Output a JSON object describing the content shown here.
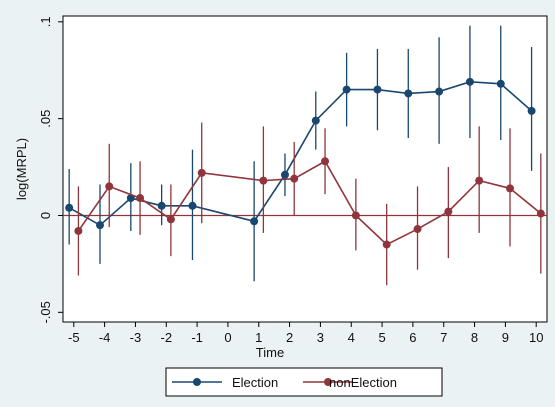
{
  "chart_data": {
    "type": "line",
    "title": "",
    "xlabel": "Time",
    "ylabel": "log(MRPL)",
    "x": [
      -5,
      -4,
      -3,
      -2,
      -1,
      1,
      2,
      3,
      4,
      5,
      6,
      7,
      8,
      9,
      10
    ],
    "x_ticks": [
      "-5",
      "-4",
      "-3",
      "-2",
      "-1",
      "0",
      "1",
      "2",
      "3",
      "4",
      "5",
      "6",
      "7",
      "8",
      "9",
      "10"
    ],
    "y_ticks": [
      {
        "value": 0.1,
        "label": ".1"
      },
      {
        "value": 0.05,
        "label": ".05"
      },
      {
        "value": 0,
        "label": "0"
      },
      {
        "value": -0.05,
        "label": "-.05"
      }
    ],
    "xlim": [
      -5.35,
      10.35
    ],
    "ylim": [
      -0.055,
      0.103
    ],
    "reference_line_y": 0,
    "legend_position": "bottom",
    "series": [
      {
        "name": "Election",
        "color": "#1a476f",
        "y": [
          0.004,
          -0.005,
          0.009,
          0.005,
          0.005,
          -0.003,
          0.021,
          0.049,
          0.065,
          0.065,
          0.063,
          0.064,
          0.069,
          0.068,
          0.054
        ],
        "low": [
          -0.015,
          -0.025,
          -0.008,
          -0.005,
          -0.023,
          -0.034,
          0.01,
          0.034,
          0.046,
          0.044,
          0.04,
          0.037,
          0.04,
          0.039,
          0.023
        ],
        "high": [
          0.024,
          0.016,
          0.027,
          0.016,
          0.034,
          0.028,
          0.032,
          0.064,
          0.084,
          0.086,
          0.086,
          0.092,
          0.098,
          0.098,
          0.087
        ],
        "x_offset": -0.15
      },
      {
        "name": "nonElection",
        "color": "#90353b",
        "y": [
          -0.008,
          0.015,
          0.009,
          -0.002,
          0.022,
          0.018,
          0.019,
          0.028,
          0.0,
          -0.015,
          -0.007,
          0.002,
          0.018,
          0.014,
          0.001
        ],
        "low": [
          -0.031,
          -0.006,
          -0.01,
          -0.021,
          -0.004,
          -0.009,
          0.0,
          0.011,
          -0.018,
          -0.036,
          -0.028,
          -0.022,
          -0.009,
          -0.016,
          -0.03
        ],
        "high": [
          0.015,
          0.037,
          0.028,
          0.016,
          0.048,
          0.046,
          0.038,
          0.045,
          0.019,
          0.006,
          0.015,
          0.025,
          0.046,
          0.045,
          0.032
        ],
        "x_offset": 0.15
      }
    ]
  }
}
